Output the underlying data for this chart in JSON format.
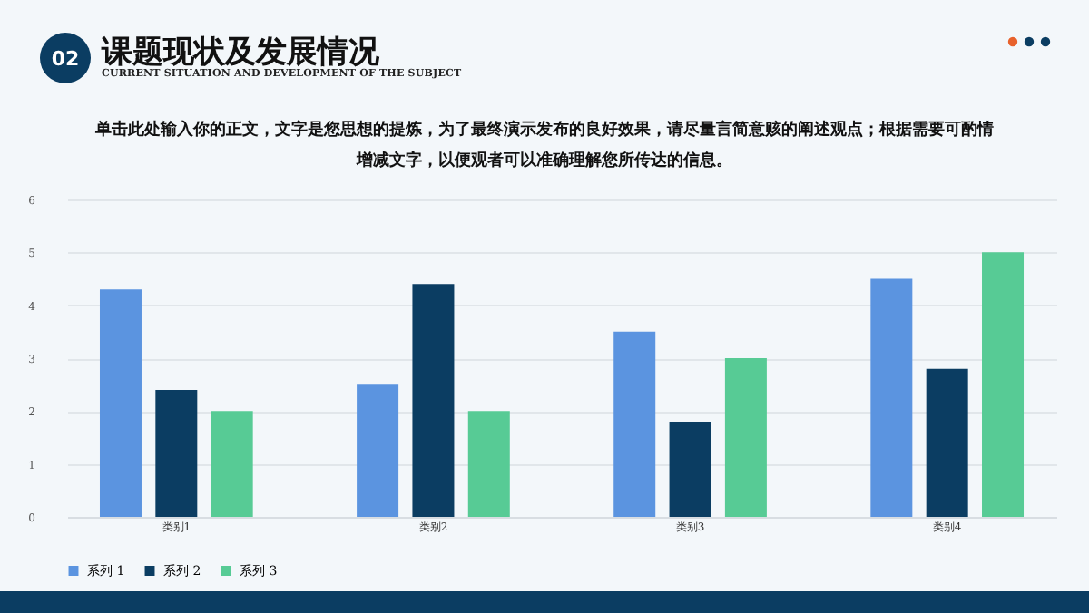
{
  "chart_data": {
    "type": "bar",
    "title": "课题现状及发展情况",
    "subtitle": "CURRENT SITUATION AND DEVELOPMENT OF THE SUBJECT",
    "annotations": [
      "02",
      "单击此处输入你的正文，文字是您思想的提炼，为了最终演示发布的良好效果，请尽量言简意赅的阐述观点；根据需要可酌情增减文字，以便观者可以准确理解您所传达的信息。"
    ],
    "categories": [
      "类别1",
      "类别2",
      "类别3",
      "类别4"
    ],
    "series": [
      {
        "name": "系列 1",
        "color": "#5b94e0",
        "values": [
          4.3,
          2.5,
          3.5,
          4.5
        ]
      },
      {
        "name": "系列 2",
        "color": "#0b3d62",
        "values": [
          2.4,
          4.4,
          1.8,
          2.8
        ]
      },
      {
        "name": "系列 3",
        "color": "#57cb95",
        "values": [
          2,
          2,
          3,
          5
        ]
      }
    ],
    "ylim": [
      0,
      6
    ],
    "yticks": [
      0,
      1,
      2,
      3,
      4,
      5,
      6
    ],
    "grid": "y",
    "legend": "bottom"
  }
}
